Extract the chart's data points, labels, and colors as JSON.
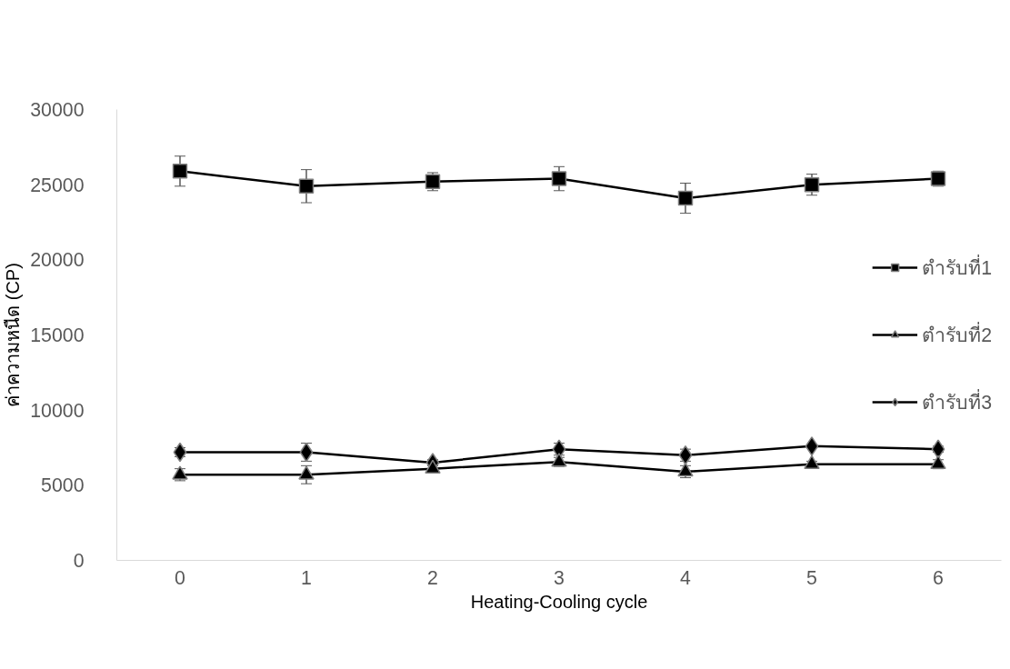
{
  "chart_data": {
    "type": "line",
    "xlabel": "Heating-Cooling cycle",
    "ylabel": "ค่าความหนืด (CP)",
    "categories": [
      "0",
      "1",
      "2",
      "3",
      "4",
      "5",
      "6"
    ],
    "ylim": [
      0,
      30000
    ],
    "yticks": [
      0,
      5000,
      10000,
      15000,
      20000,
      25000,
      30000
    ],
    "grid": false,
    "legend": "right",
    "line_style": "solid",
    "series": [
      {
        "name": "ตำรับที่1",
        "color": "#000000",
        "marker": "square",
        "values": [
          25900,
          24900,
          25200,
          25400,
          24100,
          25000,
          25400
        ],
        "errors": [
          1000,
          1100,
          600,
          800,
          1000,
          700,
          500
        ]
      },
      {
        "name": "ตำรับที่2",
        "color": "#000000",
        "marker": "triangle",
        "values": [
          5700,
          5700,
          6100,
          6550,
          5900,
          6400,
          6400
        ],
        "errors": [
          400,
          600,
          200,
          300,
          400,
          200,
          300
        ]
      },
      {
        "name": "ตำรับที่3",
        "color": "#000000",
        "marker": "diamond",
        "values": [
          7200,
          7200,
          6500,
          7400,
          7000,
          7600,
          7400
        ],
        "errors": [
          300,
          600,
          200,
          400,
          400,
          100,
          200
        ]
      }
    ]
  }
}
